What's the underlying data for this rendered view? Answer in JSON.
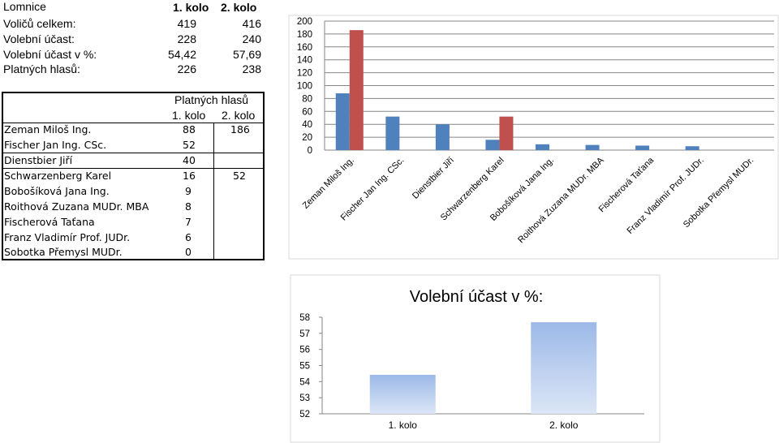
{
  "summary": {
    "title": "Lomnice",
    "col1_header": "1. kolo",
    "col2_header": "2. kolo",
    "rows": [
      {
        "label": "Voličů celkem:",
        "v1": "419",
        "v2": "416"
      },
      {
        "label": "Volební účast:",
        "v1": "228",
        "v2": "240"
      },
      {
        "label": "Volební účast v %:",
        "v1": "54,42",
        "v2": "57,69"
      },
      {
        "label": "Platných hlasů:",
        "v1": "226",
        "v2": "238"
      }
    ]
  },
  "candidates_table": {
    "header": "Platných hlasů",
    "col1_header": "1. kolo",
    "col2_header": "2. kolo",
    "rows": [
      {
        "name": "Zeman Miloš Ing.",
        "v1": "88",
        "v2": "186"
      },
      {
        "name": "Fischer Jan Ing. CSc.",
        "v1": "52",
        "v2": ""
      },
      {
        "name": "Dienstbier Jiří",
        "v1": "40",
        "v2": ""
      },
      {
        "name": "Schwarzenberg Karel",
        "v1": "16",
        "v2": "52"
      },
      {
        "name": "Bobošíková Jana Ing.",
        "v1": "9",
        "v2": ""
      },
      {
        "name": "Roithová Zuzana MUDr. MBA",
        "v1": "8",
        "v2": ""
      },
      {
        "name": "Fischerová Taťana",
        "v1": "7",
        "v2": ""
      },
      {
        "name": "Franz Vladimír Prof. JUDr.",
        "v1": "6",
        "v2": ""
      },
      {
        "name": "Sobotka Přemysl MUDr.",
        "v1": "0",
        "v2": ""
      }
    ]
  },
  "chart_data": [
    {
      "type": "bar",
      "title": "",
      "categories": [
        "Zeman Miloš Ing.",
        "Fischer Jan Ing. CSc.",
        "Dienstbier Jiří",
        "Schwarzenberg Karel",
        "Bobošíková Jana Ing.",
        "Roithová Zuzana MUDr. MBA",
        "Fischerová Taťana",
        "Franz Vladimír Prof. JUDr.",
        "Sobotka Přemysl MUDr."
      ],
      "series": [
        {
          "values": [
            88,
            52,
            40,
            16,
            9,
            8,
            7,
            6,
            0
          ],
          "color": "#4f81bd"
        },
        {
          "values": [
            186,
            null,
            null,
            52,
            null,
            null,
            null,
            null,
            null
          ],
          "color": "#c0504d"
        }
      ],
      "yticks": [
        "0",
        "20",
        "40",
        "60",
        "80",
        "100",
        "120",
        "140",
        "160",
        "180",
        "200"
      ],
      "ylim": [
        0,
        200
      ],
      "grid": true
    },
    {
      "type": "bar",
      "title": "Volební účast v %:",
      "categories": [
        "1. kolo",
        "2. kolo"
      ],
      "values": [
        54.42,
        57.69
      ],
      "yticks": [
        "52",
        "53",
        "54",
        "55",
        "56",
        "57",
        "58"
      ],
      "ylim": [
        52,
        58
      ],
      "grid": false,
      "color": "#a8c0e6"
    }
  ]
}
